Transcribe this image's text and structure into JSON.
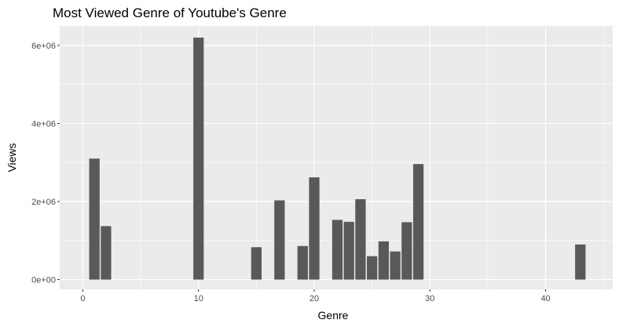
{
  "chart_data": {
    "type": "bar",
    "title": "Most Viewed Genre of Youtube's Genre",
    "xlabel": "Genre",
    "ylabel": "Views",
    "xlim": [
      -2,
      45.8
    ],
    "ylim": [
      -250000,
      6500000
    ],
    "x_ticks": [
      0,
      10,
      20,
      30,
      40
    ],
    "x_tick_labels": [
      "0",
      "10",
      "20",
      "30",
      "40"
    ],
    "y_ticks": [
      0,
      2000000,
      4000000,
      6000000
    ],
    "y_tick_labels": [
      "0e+00",
      "2e+06",
      "4e+06",
      "6e+06"
    ],
    "grid": true,
    "legend": "none",
    "bar_color": "#595959",
    "panel_color": "#ebebeb",
    "grid_color": "#ffffff",
    "x": [
      1,
      2,
      10,
      15,
      17,
      19,
      20,
      22,
      23,
      24,
      25,
      26,
      27,
      28,
      29,
      43
    ],
    "values": [
      3100000,
      1370000,
      6200000,
      830000,
      2030000,
      860000,
      2620000,
      1530000,
      1480000,
      2060000,
      600000,
      980000,
      720000,
      1470000,
      2960000,
      900000
    ]
  }
}
